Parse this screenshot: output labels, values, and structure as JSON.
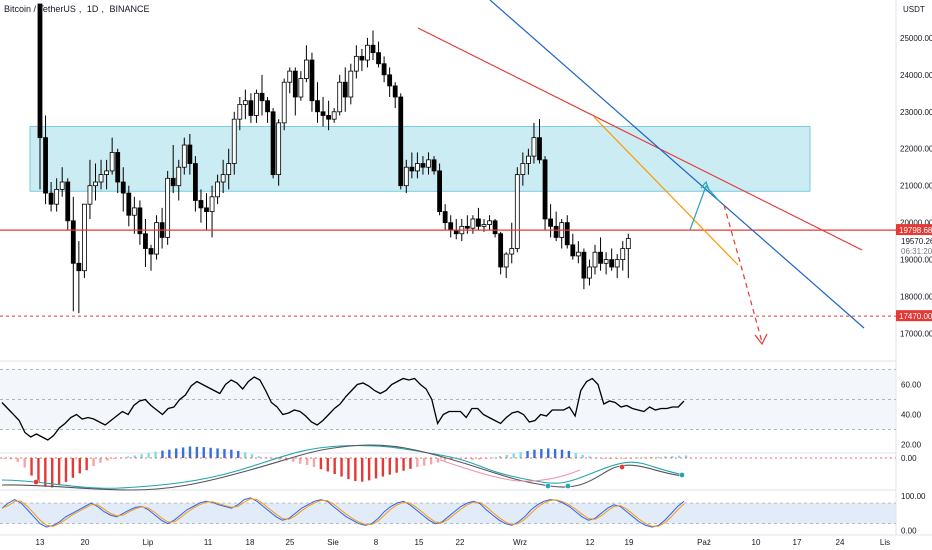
{
  "header": {
    "symbol": "Bitcoin / TetherUS",
    "interval": "1D",
    "exchange": "BINANCE"
  },
  "colors": {
    "up": "#ffffff",
    "down": "#000000",
    "zone_fill": "#b9e6ee",
    "zone_border": "#5cc0d6",
    "red_line": "#e53935",
    "blue_line": "#1e65c7",
    "orange_line": "#ff9800",
    "teal_arrow": "#26a6b5",
    "rsi_band": "#e8eef8",
    "stoch_band": "#dbe7f7"
  },
  "chart_data": [
    {
      "type": "candlestick",
      "currency_label": "USDT",
      "y_ticks": [
        "25000.00",
        "24000.00",
        "23000.00",
        "22000.00",
        "21000.00",
        "20000.00",
        "19000.00",
        "18000.00",
        "17000.00"
      ],
      "ylim": [
        16500,
        25700
      ],
      "x_tick_labels": [
        "13",
        "20",
        "Lip",
        "11",
        "18",
        "25",
        "Sie",
        "8",
        "15",
        "22",
        "Wrz",
        "12",
        "19",
        "Paź",
        "10",
        "17",
        "24",
        "Lis"
      ],
      "price_tags": {
        "last_price": "19798.68",
        "current": "19570.26",
        "countdown": "06:31:20",
        "support": "17470.00"
      },
      "zone": {
        "low": 20850,
        "high": 22600
      },
      "ohlc": [
        [
          28500,
          28900,
          20900,
          22300
        ],
        [
          22300,
          22900,
          20500,
          20800
        ],
        [
          20800,
          21100,
          20300,
          20500
        ],
        [
          20500,
          21200,
          20300,
          20900
        ],
        [
          20900,
          21500,
          20700,
          21100
        ],
        [
          21100,
          21200,
          19800,
          20050
        ],
        [
          20050,
          20700,
          17600,
          18900
        ],
        [
          18900,
          19500,
          17550,
          18700
        ],
        [
          18700,
          20500,
          18500,
          20500
        ],
        [
          20500,
          21700,
          20100,
          21000
        ],
        [
          21000,
          21600,
          20600,
          21100
        ],
        [
          21100,
          21700,
          20900,
          21300
        ],
        [
          21300,
          21700,
          20900,
          21400
        ],
        [
          21400,
          22300,
          21300,
          21900
        ],
        [
          21900,
          22000,
          20800,
          21100
        ],
        [
          21100,
          21500,
          20300,
          20800
        ],
        [
          20800,
          21000,
          19900,
          20200
        ],
        [
          20200,
          20700,
          19700,
          20400
        ],
        [
          20400,
          20600,
          19400,
          19700
        ],
        [
          19700,
          20100,
          18800,
          19300
        ],
        [
          19300,
          19400,
          18700,
          19150
        ],
        [
          19150,
          20200,
          19000,
          20000
        ],
        [
          20000,
          20400,
          19300,
          19600
        ],
        [
          19600,
          21400,
          19400,
          21200
        ],
        [
          21200,
          22100,
          20800,
          21000
        ],
        [
          21000,
          21700,
          20600,
          21500
        ],
        [
          21500,
          22300,
          21300,
          22100
        ],
        [
          22100,
          22400,
          21300,
          21600
        ],
        [
          21600,
          21800,
          20300,
          20600
        ],
        [
          20600,
          20900,
          20000,
          20400
        ],
        [
          20400,
          20800,
          19800,
          20300
        ],
        [
          20300,
          21000,
          19600,
          20700
        ],
        [
          20700,
          21300,
          20500,
          21100
        ],
        [
          21100,
          21700,
          20800,
          21300
        ],
        [
          21300,
          22000,
          20900,
          21600
        ],
        [
          21600,
          23000,
          21300,
          22800
        ],
        [
          22800,
          23400,
          22500,
          23200
        ],
        [
          23200,
          23600,
          22800,
          23300
        ],
        [
          23300,
          23500,
          22700,
          22900
        ],
        [
          22900,
          23600,
          22700,
          23500
        ],
        [
          23500,
          24000,
          22900,
          23300
        ],
        [
          23300,
          23400,
          22700,
          23000
        ],
        [
          23000,
          23100,
          21200,
          21300
        ],
        [
          21300,
          22800,
          21000,
          22700
        ],
        [
          22700,
          23900,
          22500,
          23800
        ],
        [
          23800,
          24200,
          23500,
          24100
        ],
        [
          24100,
          24200,
          22900,
          23400
        ],
        [
          23400,
          24100,
          23300,
          23900
        ],
        [
          23900,
          24800,
          23800,
          24400
        ],
        [
          24400,
          24600,
          23000,
          23300
        ],
        [
          23300,
          23800,
          22700,
          23000
        ],
        [
          23000,
          23400,
          22600,
          22900
        ],
        [
          22900,
          23300,
          22500,
          22800
        ],
        [
          22800,
          23100,
          22700,
          23000
        ],
        [
          23000,
          24000,
          22900,
          23800
        ],
        [
          23800,
          24200,
          23000,
          23400
        ],
        [
          23400,
          24300,
          23200,
          24100
        ],
        [
          24100,
          24800,
          23900,
          24500
        ],
        [
          24500,
          24700,
          24100,
          24400
        ],
        [
          24400,
          25000,
          24200,
          24800
        ],
        [
          24800,
          25200,
          24400,
          24600
        ],
        [
          24600,
          24900,
          24200,
          24300
        ],
        [
          24300,
          24500,
          23800,
          24000
        ],
        [
          24000,
          24200,
          23400,
          23700
        ],
        [
          23700,
          23800,
          23100,
          23400
        ],
        [
          23400,
          23500,
          20900,
          21000
        ],
        [
          21000,
          21700,
          20800,
          21500
        ],
        [
          21500,
          21900,
          21200,
          21400
        ],
        [
          21400,
          21900,
          21200,
          21600
        ],
        [
          21600,
          21800,
          21300,
          21500
        ],
        [
          21500,
          21900,
          21300,
          21700
        ],
        [
          21700,
          21800,
          21300,
          21400
        ],
        [
          21400,
          21600,
          20200,
          20300
        ],
        [
          20300,
          20500,
          19800,
          20000
        ],
        [
          20000,
          20200,
          19600,
          19800
        ],
        [
          19800,
          20100,
          19550,
          19700
        ],
        [
          19700,
          20100,
          19500,
          19900
        ],
        [
          19900,
          20200,
          19700,
          19850
        ],
        [
          19850,
          20200,
          19700,
          20100
        ],
        [
          20100,
          20400,
          19800,
          19900
        ],
        [
          19900,
          20100,
          19750,
          19950
        ],
        [
          19950,
          20200,
          19800,
          20050
        ],
        [
          20050,
          20100,
          19600,
          19700
        ],
        [
          19700,
          19750,
          18600,
          18800
        ],
        [
          18800,
          19200,
          18500,
          19150
        ],
        [
          19150,
          20000,
          18900,
          19300
        ],
        [
          19300,
          21500,
          19200,
          21300
        ],
        [
          21300,
          21900,
          21000,
          21600
        ],
        [
          21600,
          22000,
          21300,
          21800
        ],
        [
          21800,
          22700,
          21600,
          22300
        ],
        [
          22300,
          22800,
          21600,
          21700
        ],
        [
          21700,
          21800,
          19800,
          20100
        ],
        [
          20100,
          20500,
          19600,
          19900
        ],
        [
          19900,
          20300,
          19500,
          19600
        ],
        [
          19600,
          20100,
          19300,
          20000
        ],
        [
          20000,
          20200,
          19300,
          19400
        ],
        [
          19400,
          19700,
          19000,
          19100
        ],
        [
          19100,
          19500,
          18900,
          19200
        ],
        [
          19200,
          19300,
          18200,
          18500
        ],
        [
          18500,
          19000,
          18300,
          18800
        ],
        [
          18800,
          19400,
          18600,
          19200
        ],
        [
          19200,
          19600,
          18700,
          18900
        ],
        [
          18900,
          19200,
          18600,
          19000
        ],
        [
          19000,
          19300,
          18700,
          18800
        ],
        [
          18800,
          19150,
          18500,
          19000
        ],
        [
          19000,
          19500,
          18700,
          19300
        ],
        [
          19300,
          19700,
          18500,
          19570
        ]
      ],
      "drawings": [
        {
          "name": "red-trendline",
          "color": "#e53935",
          "from": [
            98,
            25150
          ],
          "to": [
            206,
            19000
          ]
        },
        {
          "name": "blue-trendline",
          "color": "#1e65c7",
          "from": [
            70,
            28500
          ],
          "to": [
            206,
            17050
          ]
        },
        {
          "name": "orange-line",
          "color": "#ff9800",
          "from": [
            140,
            22780
          ],
          "to": [
            176,
            18850
          ]
        },
        {
          "name": "resistance-line",
          "color": "#e53935",
          "price": 19798.68
        },
        {
          "name": "support-line",
          "color": "#e53935",
          "price": 17470.0
        }
      ]
    },
    {
      "type": "line",
      "name": "RSI",
      "y_ticks": [
        "60.00",
        "40.00",
        "20.00"
      ],
      "ylim": [
        15,
        75
      ],
      "values": [
        48,
        44,
        40,
        36,
        28,
        25,
        27,
        25,
        23,
        26,
        31,
        34,
        38,
        40,
        37,
        38,
        37,
        35,
        33,
        36,
        39,
        42,
        40,
        46,
        49,
        50,
        46,
        43,
        40,
        44,
        45,
        50,
        53,
        59,
        62,
        60,
        58,
        56,
        54,
        60,
        63,
        61,
        57,
        62,
        65,
        63,
        56,
        48,
        45,
        40,
        41,
        43,
        42,
        39,
        35,
        33,
        36,
        40,
        44,
        47,
        52,
        56,
        60,
        61,
        59,
        56,
        54,
        56,
        60,
        62,
        64,
        63,
        64,
        60,
        57,
        50,
        34,
        40,
        42,
        42,
        42,
        38,
        44,
        44,
        40,
        38,
        36,
        34,
        38,
        41,
        42,
        40,
        35,
        36,
        40,
        39,
        43,
        43,
        43,
        45,
        39,
        56,
        62,
        64,
        60,
        47,
        49,
        48,
        45,
        46,
        44,
        43,
        42,
        45,
        43,
        44,
        44,
        45,
        45,
        49
      ]
    },
    {
      "type": "bar",
      "name": "MACD histogram",
      "y_ticks": [
        "0.00"
      ],
      "values": [
        -2,
        -4,
        -12,
        -30,
        -55,
        -78,
        -90,
        -92,
        -85,
        -75,
        -62,
        -48,
        -38,
        -25,
        -15,
        -8,
        -3,
        2,
        5,
        8,
        12,
        16,
        20,
        23,
        26,
        30,
        33,
        36,
        35,
        34,
        32,
        30,
        28,
        26,
        22,
        18,
        12,
        6,
        2,
        -2,
        -5,
        -8,
        -12,
        -18,
        -22,
        -28,
        -35,
        -42,
        -50,
        -58,
        -66,
        -72,
        -74,
        -70,
        -64,
        -58,
        -52,
        -46,
        -40,
        -34,
        -28,
        -24,
        -20,
        -14,
        -8,
        -4,
        0,
        -3,
        -6,
        -5,
        -2,
        2,
        6,
        10,
        14,
        18,
        22,
        26,
        28,
        30,
        28,
        26,
        22,
        16,
        10,
        5,
        2,
        -1,
        -3,
        -2,
        -1,
        0,
        1,
        2,
        3,
        4,
        5,
        6,
        7,
        8
      ]
    },
    {
      "type": "line",
      "name": "Stochastic",
      "y_ticks": [
        "100.00",
        "0.00"
      ],
      "ylim": [
        -10,
        115
      ],
      "values": [
        65,
        80,
        90,
        80,
        60,
        40,
        20,
        10,
        15,
        25,
        40,
        50,
        60,
        70,
        80,
        70,
        55,
        45,
        40,
        50,
        60,
        68,
        70,
        60,
        45,
        30,
        20,
        30,
        45,
        60,
        70,
        80,
        85,
        82,
        75,
        70,
        65,
        75,
        90,
        95,
        85,
        70,
        55,
        40,
        30,
        35,
        50,
        65,
        75,
        85,
        90,
        85,
        70,
        55,
        40,
        30,
        20,
        15,
        20,
        35,
        55,
        70,
        80,
        85,
        75,
        60,
        45,
        30,
        20,
        25,
        40,
        55,
        70,
        80,
        85,
        78,
        60,
        45,
        30,
        20,
        15,
        25,
        40,
        60,
        75,
        85,
        90,
        88,
        80,
        70,
        55,
        40,
        30,
        35,
        50,
        65,
        75,
        70,
        55,
        40,
        25,
        15,
        10,
        15,
        30,
        50,
        70,
        85
      ]
    }
  ]
}
